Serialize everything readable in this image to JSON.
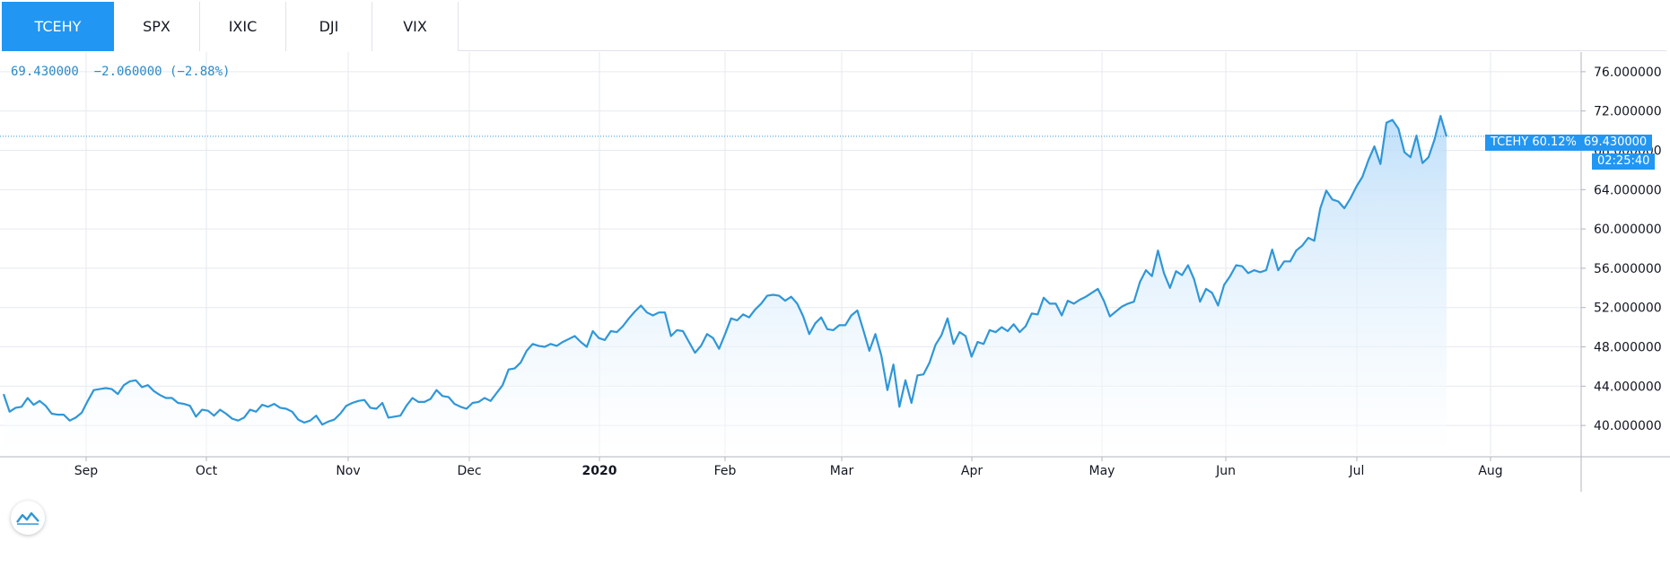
{
  "tabs": [
    "TCEHY",
    "SPX",
    "IXIC",
    "DJI",
    "VIX"
  ],
  "active_tab": "TCEHY",
  "legend": {
    "price": "69.430000",
    "change": "−2.060000",
    "change_pct": "(−2.88%)"
  },
  "price_label": {
    "symbol": "TCEHY",
    "pct": "60.12%",
    "value": "69.430000"
  },
  "countdown": "02:25:40",
  "colors": {
    "accent": "#2196f3",
    "line": "#2f97d8",
    "fill": "#d4e9fb",
    "grid": "#e6e9ef"
  },
  "icons": {
    "logo": "tradingview-logo-icon"
  },
  "chart_data": {
    "type": "area",
    "ylim": [
      37,
      78
    ],
    "y_ticks": [
      "40.000000",
      "44.000000",
      "48.000000",
      "52.000000",
      "56.000000",
      "60.000000",
      "64.000000",
      "68.000000",
      "72.000000",
      "76.000000"
    ],
    "x_ticks": [
      "Sep",
      "Oct",
      "Nov",
      "Dec",
      "2020",
      "Feb",
      "Mar",
      "Apr",
      "May",
      "Jun",
      "Jul",
      "Aug"
    ],
    "last_value": 69.43,
    "values": [
      43.2,
      41.4,
      41.8,
      41.9,
      42.8,
      42.1,
      42.5,
      42.0,
      41.2,
      41.1,
      41.1,
      40.5,
      40.8,
      41.3,
      42.5,
      43.6,
      43.7,
      43.8,
      43.7,
      43.2,
      44.1,
      44.5,
      44.6,
      43.9,
      44.1,
      43.5,
      43.1,
      42.8,
      42.8,
      42.3,
      42.2,
      42.0,
      40.9,
      41.6,
      41.5,
      41.0,
      41.6,
      41.2,
      40.7,
      40.5,
      40.8,
      41.6,
      41.4,
      42.1,
      41.9,
      42.2,
      41.8,
      41.7,
      41.4,
      40.6,
      40.3,
      40.5,
      41.0,
      40.1,
      40.4,
      40.6,
      41.2,
      42.0,
      42.3,
      42.5,
      42.6,
      41.8,
      41.7,
      42.3,
      40.8,
      40.9,
      41.0,
      42.0,
      42.8,
      42.4,
      42.4,
      42.7,
      43.6,
      43.0,
      42.9,
      42.2,
      41.9,
      41.7,
      42.3,
      42.4,
      42.8,
      42.5,
      43.3,
      44.1,
      45.7,
      45.8,
      46.4,
      47.6,
      48.3,
      48.1,
      48.0,
      48.3,
      48.1,
      48.5,
      48.8,
      49.1,
      48.5,
      48.0,
      49.6,
      48.9,
      48.7,
      49.6,
      49.5,
      50.1,
      50.9,
      51.6,
      52.2,
      51.5,
      51.2,
      51.5,
      51.5,
      49.1,
      49.7,
      49.6,
      48.5,
      47.4,
      48.1,
      49.3,
      48.9,
      47.8,
      49.3,
      50.9,
      50.7,
      51.3,
      51.0,
      51.8,
      52.4,
      53.2,
      53.3,
      53.2,
      52.7,
      53.1,
      52.4,
      51.1,
      49.3,
      50.4,
      51.0,
      49.8,
      49.7,
      50.2,
      50.2,
      51.2,
      51.7,
      49.7,
      47.6,
      49.3,
      47.1,
      43.6,
      46.2,
      41.9,
      44.6,
      42.3,
      45.1,
      45.2,
      46.4,
      48.2,
      49.2,
      50.9,
      48.3,
      49.5,
      49.1,
      47.0,
      48.5,
      48.3,
      49.7,
      49.5,
      50.0,
      49.6,
      50.3,
      49.5,
      50.1,
      51.4,
      51.3,
      53.0,
      52.4,
      52.4,
      51.2,
      52.7,
      52.4,
      52.8,
      53.1,
      53.5,
      53.9,
      52.7,
      51.1,
      51.6,
      52.1,
      52.4,
      52.6,
      54.6,
      55.8,
      55.2,
      57.8,
      55.5,
      54.0,
      55.7,
      55.3,
      56.3,
      54.9,
      52.6,
      53.9,
      53.5,
      52.2,
      54.3,
      55.2,
      56.3,
      56.2,
      55.5,
      55.8,
      55.6,
      55.8,
      57.9,
      55.8,
      56.7,
      56.7,
      57.8,
      58.3,
      59.1,
      58.8,
      62.1,
      63.9,
      63.0,
      62.8,
      62.1,
      63.1,
      64.3,
      65.3,
      67.0,
      68.4,
      66.6,
      70.8,
      71.1,
      70.2,
      67.8,
      67.3,
      69.5,
      66.7,
      67.3,
      69.1,
      71.5,
      69.4
    ]
  }
}
